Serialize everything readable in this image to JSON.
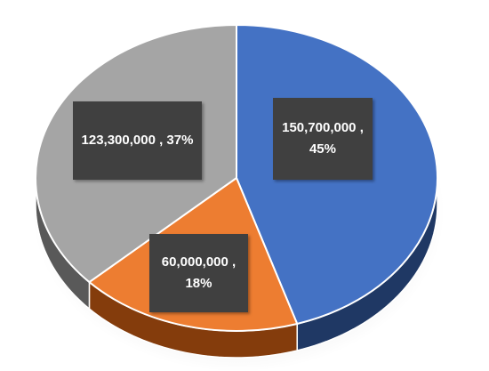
{
  "chart_data": {
    "type": "pie",
    "title": "",
    "slices": [
      {
        "value": 150700000,
        "percent": 45,
        "label_line1": "150,700,000 ,",
        "label_line2": "45%",
        "color": "#4472C4",
        "side_color": "#1F3864"
      },
      {
        "value": 60000000,
        "percent": 18,
        "label_line1": "60,000,000 ,",
        "label_line2": "18%",
        "color": "#ED7D31",
        "side_color": "#843C0C"
      },
      {
        "value": 123300000,
        "percent": 37,
        "label_line1": "123,300,000 , 37%",
        "label_line2": "",
        "color": "#A5A5A5",
        "side_color": "#595959"
      }
    ],
    "legend": "none",
    "style": "3d"
  }
}
